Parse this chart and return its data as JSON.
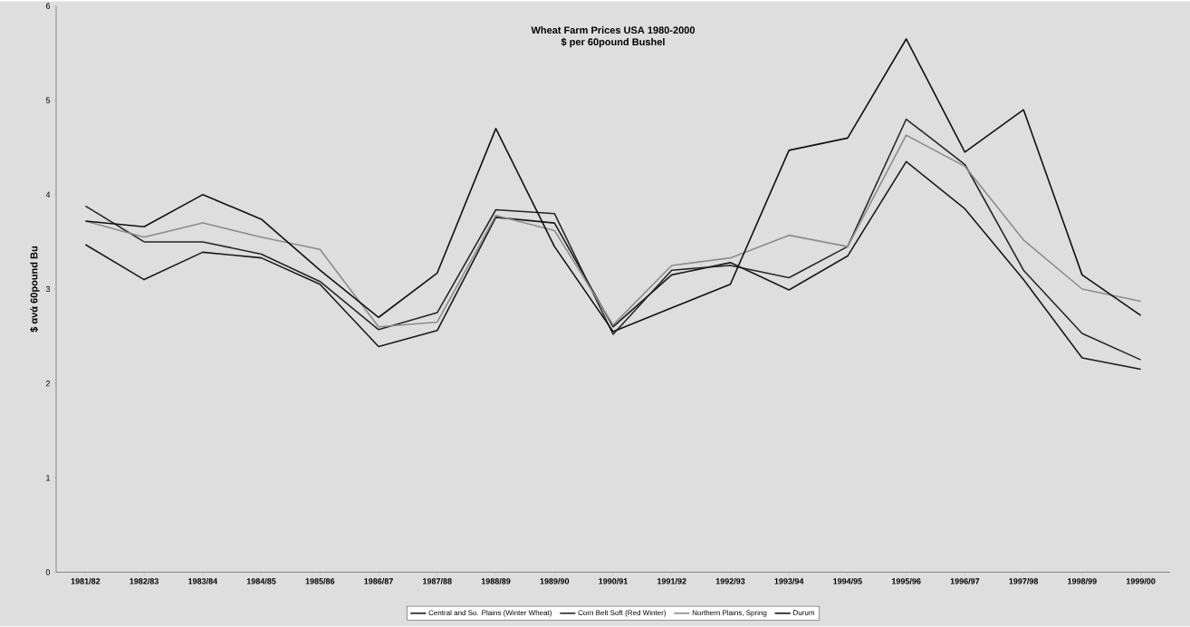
{
  "chart_data": {
    "type": "line",
    "title": "Wheat Farm Prices USA 1980-2000",
    "subtitle": "$ per 60pound Bushel",
    "ylabel": "$ ανά 60pound Bu",
    "categories": [
      "1981/82",
      "1982/83",
      "1983/84",
      "1984/85",
      "1985/86",
      "1986/87",
      "1987/88",
      "1988/89",
      "1989/90",
      "1990/91",
      "1991/92",
      "1992/93",
      "1993/94",
      "1994/95",
      "1995/96",
      "1996/97",
      "1997/98",
      "1998/99",
      "1999/00"
    ],
    "series": [
      {
        "name": "Central and So. Plains (Winter Wheat)",
        "color": "#1a1a1a",
        "values": [
          3.47,
          3.1,
          3.39,
          3.33,
          3.05,
          2.39,
          2.56,
          3.76,
          3.7,
          2.6,
          3.15,
          3.28,
          2.99,
          3.35,
          4.35,
          3.85,
          3.1,
          2.27,
          2.15
        ]
      },
      {
        "name": "Corn Belt Soft (Red Winter)",
        "color": "#262626",
        "values": [
          3.88,
          3.5,
          3.5,
          3.37,
          3.08,
          2.57,
          2.75,
          3.84,
          3.8,
          2.52,
          3.2,
          3.25,
          3.12,
          3.45,
          4.8,
          4.32,
          3.2,
          2.53,
          2.25
        ]
      },
      {
        "name": "Northern Plains, Spring",
        "color": "#8c8c8c",
        "values": [
          3.72,
          3.55,
          3.7,
          3.55,
          3.42,
          2.6,
          2.65,
          3.78,
          3.62,
          2.62,
          3.25,
          3.33,
          3.57,
          3.45,
          4.63,
          4.3,
          3.52,
          3.0,
          2.87
        ]
      },
      {
        "name": "Durum",
        "color": "#111111",
        "values": [
          3.72,
          3.66,
          4.0,
          3.74,
          3.2,
          2.7,
          3.17,
          4.7,
          3.45,
          2.55,
          2.8,
          3.05,
          4.47,
          4.6,
          5.65,
          4.45,
          4.9,
          3.15,
          2.72
        ]
      }
    ],
    "ylim": [
      0,
      6
    ],
    "yticks": [
      0,
      1,
      2,
      3,
      4,
      5,
      6
    ],
    "grid": false,
    "legend": "bottom",
    "marker": "none",
    "line_style": "solid"
  }
}
